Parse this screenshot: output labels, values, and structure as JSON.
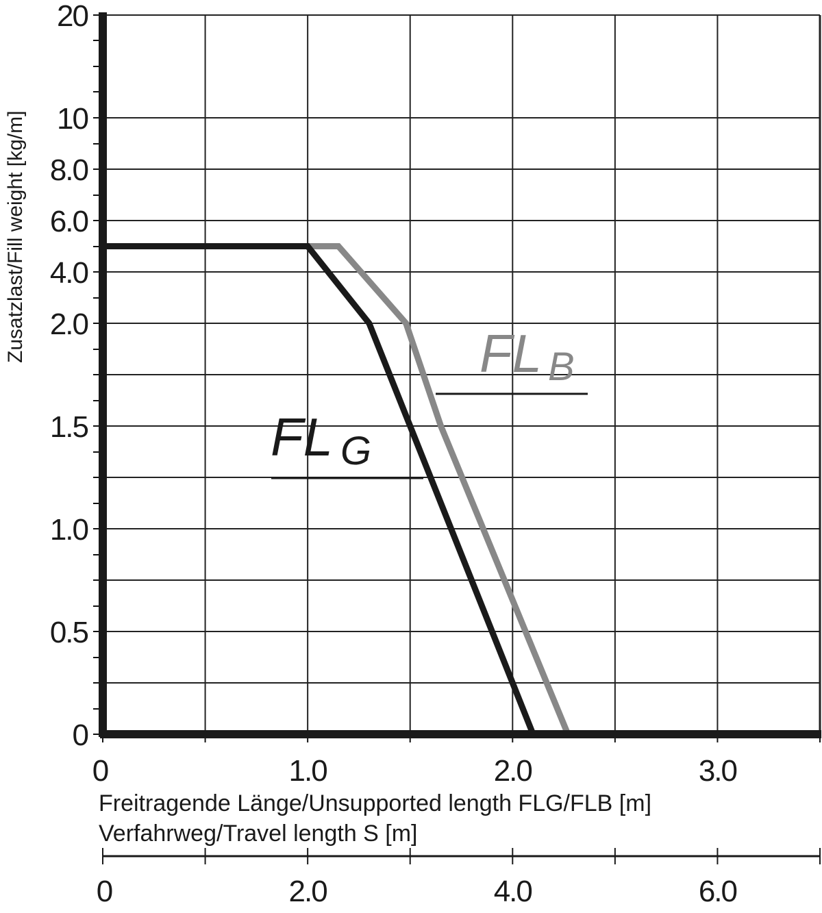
{
  "chart_data": {
    "type": "line",
    "ylabel": "Zusatzlast/Fill weight [kg/m]",
    "xlabel_primary": "Freitragende Länge/Unsupported length FLG/FLB [m]",
    "xlabel_secondary": "Verfahrweg/Travel length S [m]",
    "x_ticks": [
      "0",
      "1.0",
      "2.0",
      "3.0"
    ],
    "x_secondary_ticks": [
      "0",
      "2.0",
      "4.0",
      "6.0"
    ],
    "y_ticks": [
      "0",
      "0.5",
      "1.0",
      "1.5",
      "2.0",
      "4.0",
      "6.0",
      "8.0",
      "10",
      "20"
    ],
    "xlim": [
      0,
      3.5
    ],
    "x_secondary_lim": [
      0,
      7.0
    ],
    "grid": true,
    "series": [
      {
        "name": "FL G",
        "color": "#1a1a1a",
        "points": [
          [
            0,
            5.0
          ],
          [
            1.0,
            5.0
          ],
          [
            1.3,
            2.0
          ],
          [
            1.5,
            1.5
          ],
          [
            2.1,
            0
          ]
        ]
      },
      {
        "name": "FL B",
        "color": "#888888",
        "points": [
          [
            1.0,
            5.0
          ],
          [
            1.15,
            5.0
          ],
          [
            1.48,
            2.0
          ],
          [
            1.65,
            1.5
          ],
          [
            2.27,
            0
          ]
        ]
      }
    ],
    "labels": {
      "flg_main": "FL",
      "flg_sub": "G",
      "flb_main": "FL",
      "flb_sub": "B"
    }
  }
}
